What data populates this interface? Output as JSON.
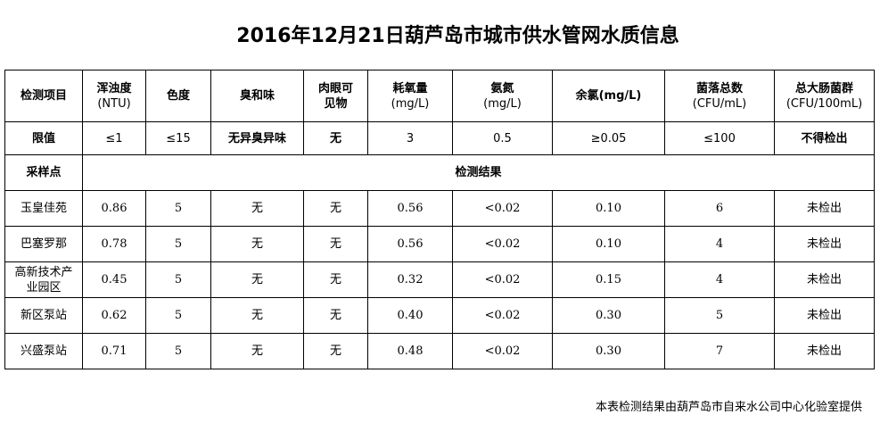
{
  "title": "2016年12月21日葫芦岛市城市供水管网水质信息",
  "headers": [
    {
      "l1": "检测项目",
      "l2": ""
    },
    {
      "l1": "浑浊度",
      "l2": "(NTU)"
    },
    {
      "l1": "色度",
      "l2": ""
    },
    {
      "l1": "臭和味",
      "l2": ""
    },
    {
      "l1": "肉眼可",
      "l2": "见物"
    },
    {
      "l1": "耗氧量",
      "l2": "(mg/L)"
    },
    {
      "l1": "氨氮",
      "l2": "(mg/L)"
    },
    {
      "l1": "余氯(mg/L)",
      "l2": ""
    },
    {
      "l1": "菌落总数",
      "l2": "(CFU/mL)"
    },
    {
      "l1": "总大肠菌群",
      "l2": "(CFU/100mL)"
    }
  ],
  "limits": [
    "限值",
    "≤1",
    "≤15",
    "无异臭异味",
    "无",
    "3",
    "0.5",
    "≥0.05",
    "≤100",
    "不得检出"
  ],
  "sample_label": "采样点",
  "results_label": "检测结果",
  "rows": [
    [
      "玉皇佳苑",
      "0.86",
      "5",
      "无",
      "无",
      "0.56",
      "<0.02",
      "0.10",
      "6",
      "未检出"
    ],
    [
      "巴塞罗那",
      "0.78",
      "5",
      "无",
      "无",
      "0.56",
      "<0.02",
      "0.10",
      "4",
      "未检出"
    ],
    [
      "高新技术产业园区",
      "0.45",
      "5",
      "无",
      "无",
      "0.32",
      "<0.02",
      "0.15",
      "4",
      "未检出"
    ],
    [
      "新区泵站",
      "0.62",
      "5",
      "无",
      "无",
      "0.40",
      "<0.02",
      "0.30",
      "5",
      "未检出"
    ],
    [
      "兴盛泵站",
      "0.71",
      "5",
      "无",
      "无",
      "0.48",
      "<0.02",
      "0.30",
      "7",
      "未检出"
    ]
  ],
  "footer": "本表检测结果由葫芦岛市自来水公司中心化验室提供"
}
